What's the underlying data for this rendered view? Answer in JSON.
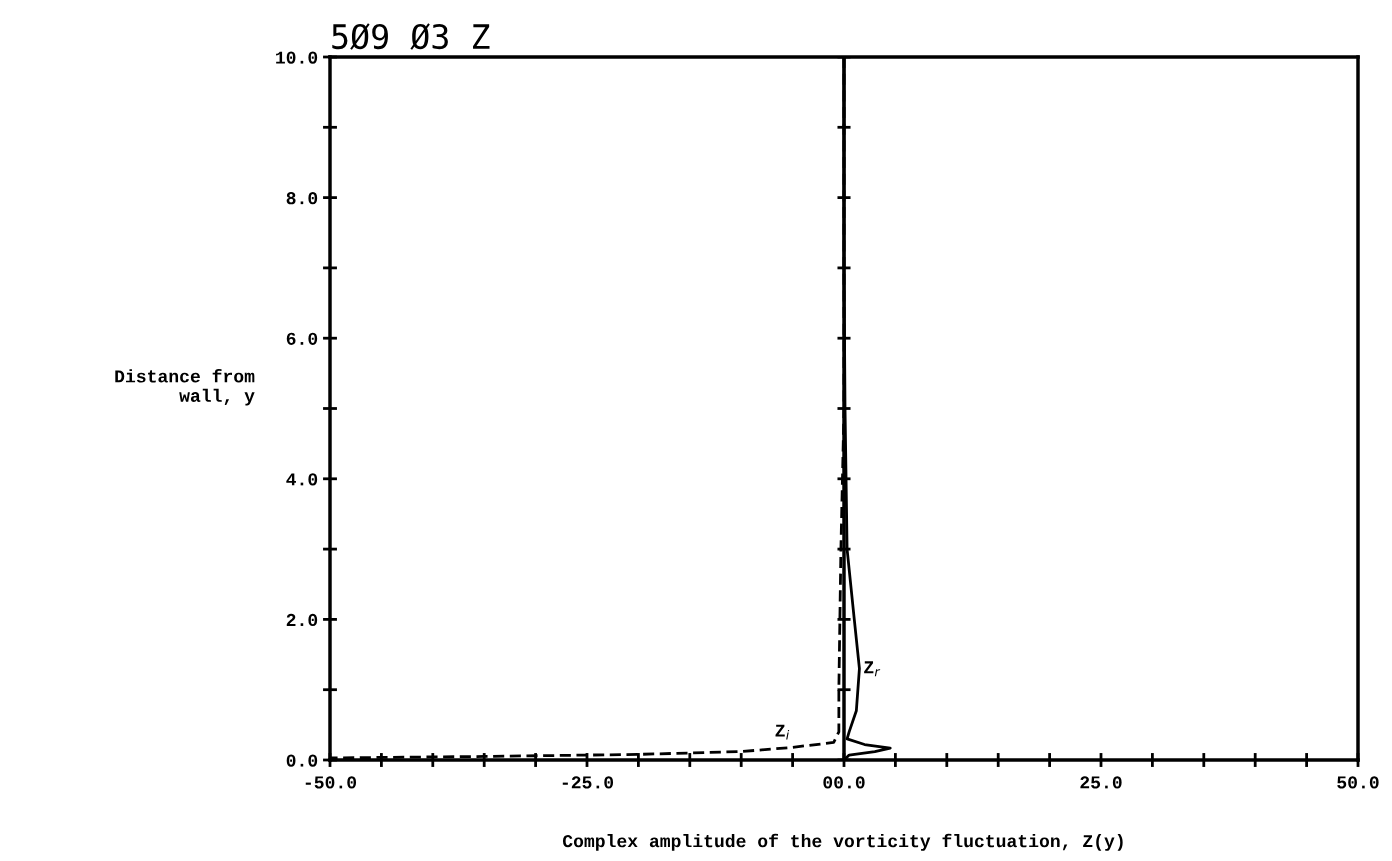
{
  "chart_data": {
    "type": "line",
    "title": "5Ø9 Ø3 Z",
    "xlabel": "Complex amplitude of the vorticity fluctuation, Z(y)",
    "ylabel": "Distance from\nwall, y",
    "xlim": [
      -50,
      50
    ],
    "ylim": [
      0,
      10
    ],
    "xticks": [
      {
        "value": -50,
        "label": "-50.0"
      },
      {
        "value": -45,
        "label": null
      },
      {
        "value": -40,
        "label": null
      },
      {
        "value": -35,
        "label": null
      },
      {
        "value": -30,
        "label": null
      },
      {
        "value": -25,
        "label": "-25.0"
      },
      {
        "value": -20,
        "label": null
      },
      {
        "value": -15,
        "label": null
      },
      {
        "value": -10,
        "label": null
      },
      {
        "value": -5,
        "label": null
      },
      {
        "value": 0,
        "label": "00.0"
      },
      {
        "value": 5,
        "label": null
      },
      {
        "value": 10,
        "label": null
      },
      {
        "value": 15,
        "label": null
      },
      {
        "value": 20,
        "label": null
      },
      {
        "value": 25,
        "label": "25.0"
      },
      {
        "value": 30,
        "label": null
      },
      {
        "value": 35,
        "label": null
      },
      {
        "value": 40,
        "label": null
      },
      {
        "value": 45,
        "label": null
      },
      {
        "value": 50,
        "label": "50.0"
      }
    ],
    "yticks": [
      {
        "value": 0,
        "label": "0.0"
      },
      {
        "value": 1,
        "label": null
      },
      {
        "value": 2,
        "label": "2.0"
      },
      {
        "value": 3,
        "label": null
      },
      {
        "value": 4,
        "label": "4.0"
      },
      {
        "value": 5,
        "label": null
      },
      {
        "value": 6,
        "label": "6.0"
      },
      {
        "value": 7,
        "label": null
      },
      {
        "value": 8,
        "label": "8.0"
      },
      {
        "value": 9,
        "label": null
      },
      {
        "value": 10,
        "label": "10.0"
      }
    ],
    "grid": false,
    "marker": "none",
    "ref_lines": [
      {
        "axis": "x",
        "value": 0,
        "label": null,
        "color": "#000000",
        "line_style": "solid"
      }
    ],
    "series": [
      {
        "color": "#000000",
        "line_style": "solid",
        "x": [
          0,
          0,
          0.1,
          0.3,
          1.0,
          1.5,
          1.2,
          0.5,
          0.3,
          2.0,
          4.5,
          3.0,
          0.5,
          0
        ],
        "values": [
          10,
          7,
          5,
          3,
          2,
          1.3,
          0.7,
          0.4,
          0.3,
          0.22,
          0.17,
          0.12,
          0.07,
          0
        ]
      },
      {
        "color": "#000000",
        "line_style": "dashed",
        "x": [
          0,
          0,
          -0.3,
          -0.5,
          -0.5,
          -1,
          -5,
          -10,
          -20,
          -35,
          -50
        ],
        "values": [
          10,
          5,
          3,
          1,
          0.4,
          0.25,
          0.18,
          0.12,
          0.08,
          0.05,
          0.03
        ]
      }
    ],
    "annotations": [
      "Z$_{r}$",
      "Z$_{i}$"
    ]
  }
}
